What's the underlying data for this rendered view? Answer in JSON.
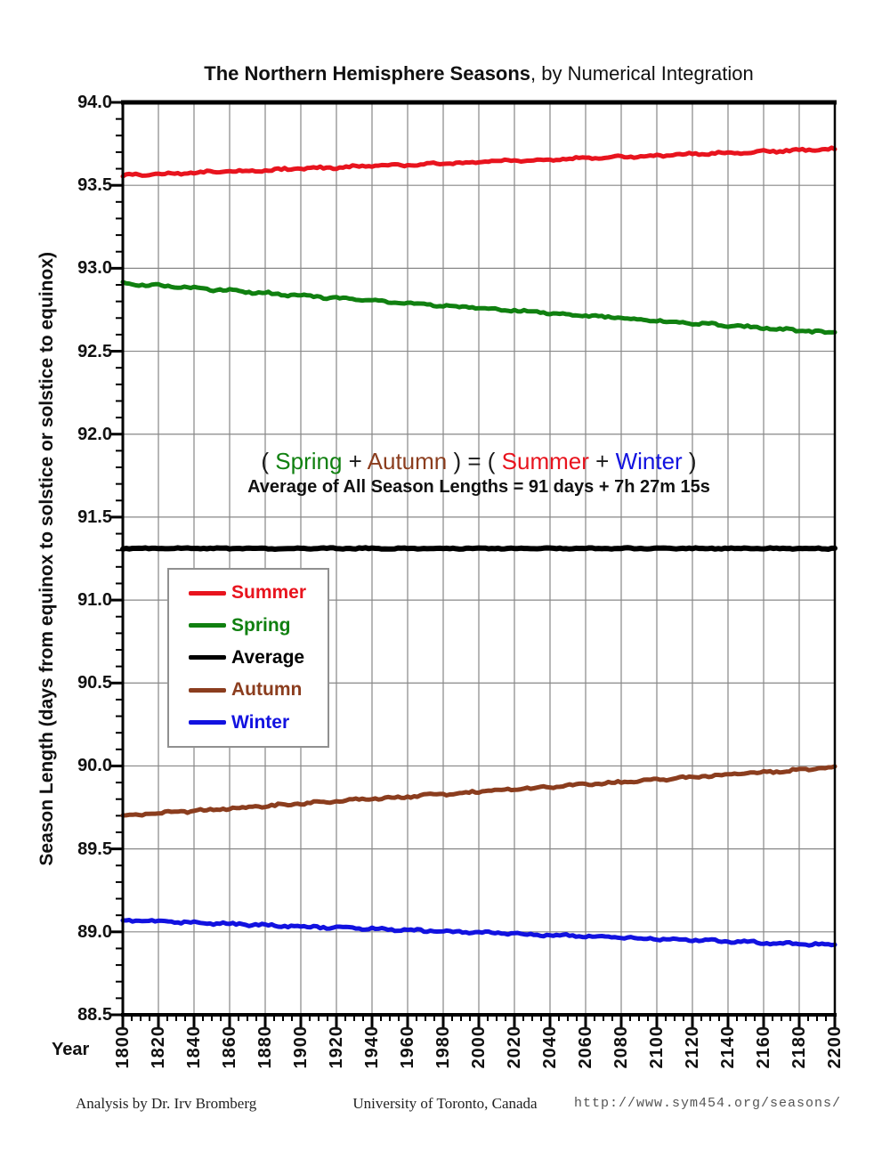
{
  "header": {
    "title_bold": "The Northern Hemisphere Seasons",
    "title_regular": ", by Numerical Integration"
  },
  "colors": {
    "summer": "#e8141e",
    "spring": "#108010",
    "average": "#000000",
    "autumn": "#8b3d1e",
    "winter": "#1212e0",
    "ink": "#1a1a1a",
    "grid": "#878787",
    "url": "#555555"
  },
  "annotation": {
    "formula": [
      {
        "text": "( ",
        "color": "ink"
      },
      {
        "text": "Spring",
        "color": "spring"
      },
      {
        "text": " + ",
        "color": "ink"
      },
      {
        "text": "Autumn",
        "color": "autumn"
      },
      {
        "text": " ) = ( ",
        "color": "ink"
      },
      {
        "text": "Summer",
        "color": "summer"
      },
      {
        "text": " + ",
        "color": "ink"
      },
      {
        "text": "Winter",
        "color": "winter"
      },
      {
        "text": " )",
        "color": "ink"
      }
    ],
    "average_line": "Average of All Season Lengths = 91 days + 7h 27m 15s"
  },
  "footer": {
    "analysis": "Analysis by Dr. Irv Bromberg",
    "university": "University of Toronto, Canada",
    "url": "http://www.sym454.org/seasons/"
  },
  "chart_data": {
    "type": "line",
    "title": "The Northern Hemisphere Seasons, by Numerical Integration",
    "xlabel": "Year",
    "ylabel": "Season Length (days from equinox to solstice or solstice to equinox)",
    "xlim": [
      1800,
      2200
    ],
    "ylim": [
      88.5,
      94.0
    ],
    "x_major_step": 20,
    "x_minor_step": 5,
    "y_major_step": 0.5,
    "y_minor_step": 0.1,
    "grid": true,
    "legend_position": "inside-left-middle",
    "x_ticks": [
      "1800",
      "1820",
      "1840",
      "1860",
      "1880",
      "1900",
      "1920",
      "1940",
      "1960",
      "1980",
      "2000",
      "2020",
      "2040",
      "2060",
      "2080",
      "2100",
      "2120",
      "2140",
      "2160",
      "2180",
      "2200"
    ],
    "y_ticks": [
      "94.0",
      "93.5",
      "93.0",
      "92.5",
      "92.0",
      "91.5",
      "91.0",
      "90.5",
      "90.0",
      "89.5",
      "89.0",
      "88.5"
    ],
    "x": [
      1800,
      1820,
      1840,
      1860,
      1880,
      1900,
      1920,
      1940,
      1960,
      1980,
      2000,
      2020,
      2040,
      2060,
      2080,
      2100,
      2120,
      2140,
      2160,
      2180,
      2200
    ],
    "series": [
      {
        "name": "Summer",
        "color": "#e8141e",
        "values": [
          93.56,
          93.568,
          93.576,
          93.584,
          93.592,
          93.6,
          93.608,
          93.616,
          93.624,
          93.632,
          93.64,
          93.648,
          93.656,
          93.664,
          93.672,
          93.68,
          93.688,
          93.696,
          93.704,
          93.712,
          93.72
        ]
      },
      {
        "name": "Spring",
        "color": "#108010",
        "values": [
          92.91,
          92.895,
          92.88,
          92.865,
          92.85,
          92.835,
          92.82,
          92.805,
          92.79,
          92.775,
          92.76,
          92.745,
          92.73,
          92.715,
          92.7,
          92.685,
          92.67,
          92.655,
          92.64,
          92.625,
          92.61
        ]
      },
      {
        "name": "Average",
        "color": "#000000",
        "values": [
          91.311,
          91.311,
          91.311,
          91.311,
          91.311,
          91.311,
          91.311,
          91.311,
          91.311,
          91.311,
          91.311,
          91.311,
          91.311,
          91.311,
          91.311,
          91.311,
          91.311,
          91.311,
          91.311,
          91.311,
          91.311
        ]
      },
      {
        "name": "Autumn",
        "color": "#8b3d1e",
        "values": [
          89.7,
          89.715,
          89.729,
          89.744,
          89.758,
          89.773,
          89.787,
          89.802,
          89.816,
          89.831,
          89.845,
          89.86,
          89.874,
          89.889,
          89.903,
          89.918,
          89.932,
          89.947,
          89.961,
          89.976,
          89.99
        ]
      },
      {
        "name": "Winter",
        "color": "#1212e0",
        "values": [
          89.07,
          89.063,
          89.055,
          89.048,
          89.04,
          89.033,
          89.025,
          89.018,
          89.01,
          89.003,
          88.995,
          88.988,
          88.98,
          88.973,
          88.965,
          88.958,
          88.95,
          88.943,
          88.935,
          88.928,
          88.92
        ]
      }
    ]
  }
}
